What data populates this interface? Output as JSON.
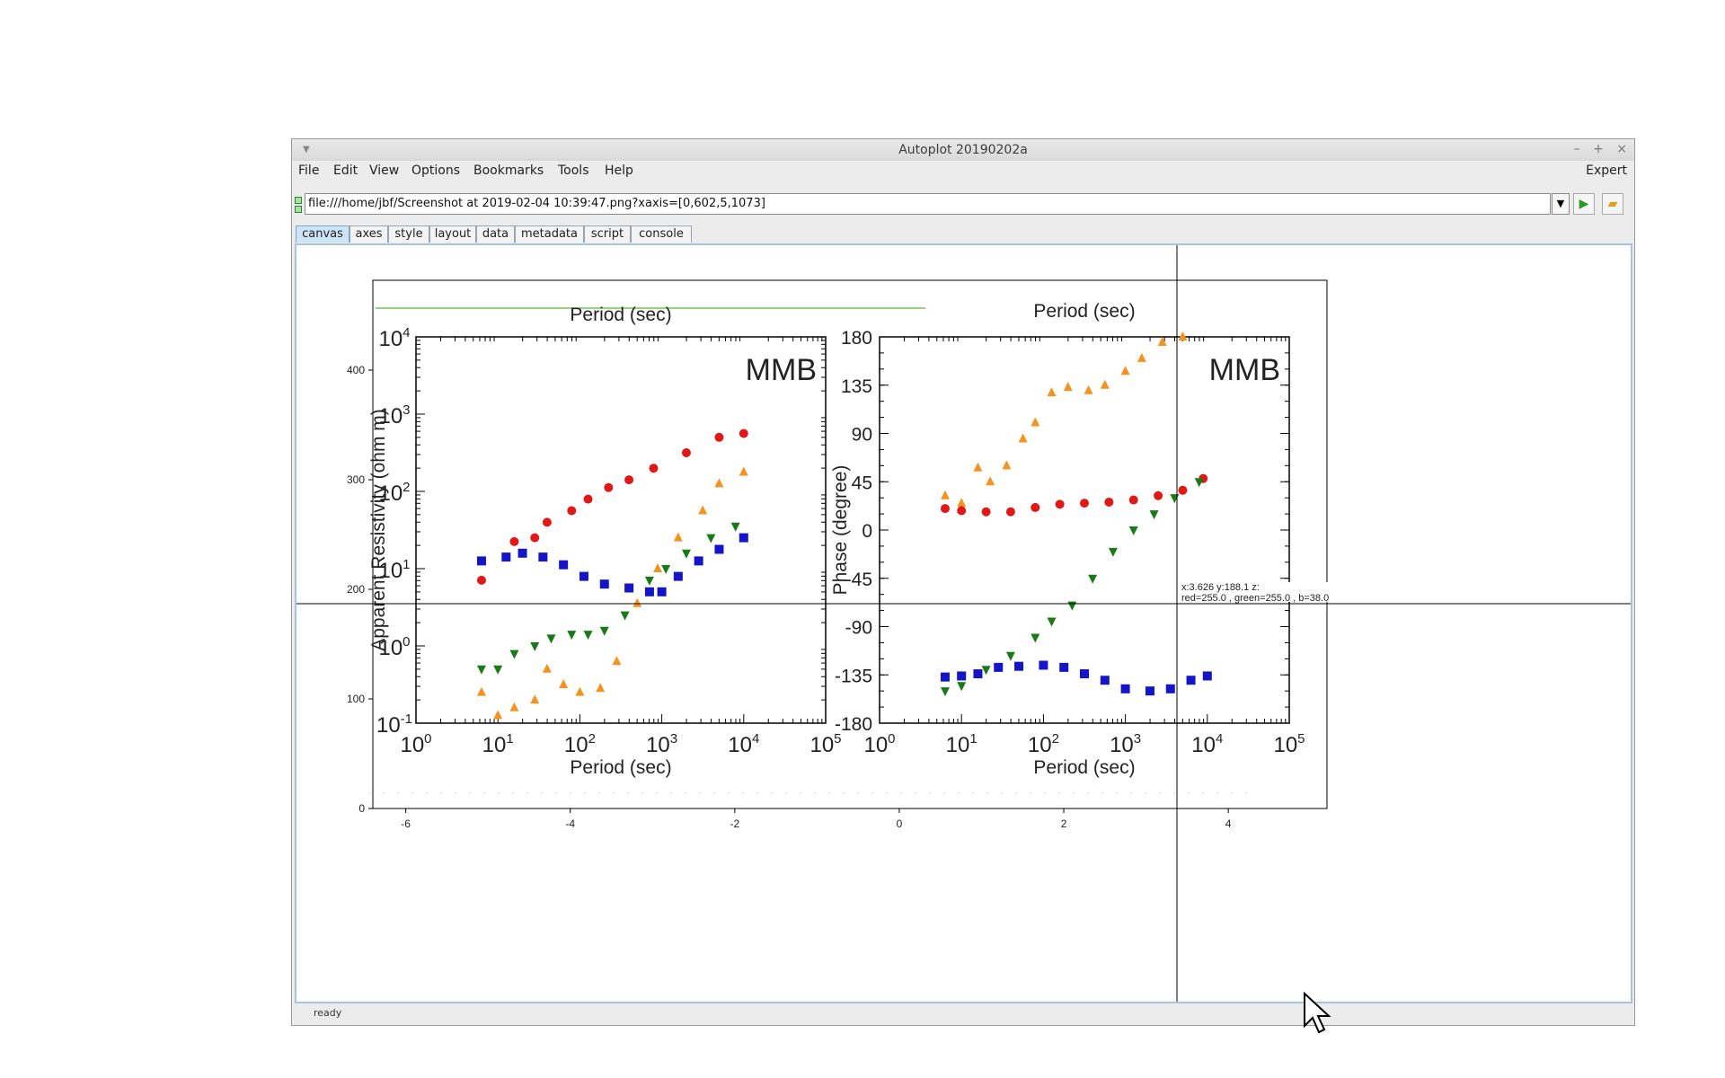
{
  "window": {
    "title": "Autoplot 20190202a"
  },
  "menu": {
    "items": [
      "File",
      "Edit",
      "View",
      "Options",
      "Bookmarks",
      "Tools",
      "Help"
    ],
    "expert": "Expert"
  },
  "url": {
    "value": "file:///home/jbf/Screenshot at 2019-02-04 10:39:47.png?xaxis=[0,602,5,1073]"
  },
  "tabs": [
    "canvas",
    "axes",
    "style",
    "layout",
    "data",
    "metadata",
    "script",
    "console"
  ],
  "status": "ready",
  "readout": {
    "coords": "x:3.626  y:188.1  z:",
    "rgb": "red=255.0 , green=255.0 , b=38.0"
  },
  "chart_data": [
    {
      "type": "scatter",
      "title": "",
      "xlabel": "",
      "ylabel": "",
      "x_ticks": [
        -6,
        -4,
        -2,
        0,
        2,
        4
      ],
      "y_ticks": [
        0,
        100,
        200,
        300,
        400
      ],
      "xlim": [
        -6.4,
        5.2
      ],
      "ylim": [
        0,
        482
      ]
    },
    {
      "type": "scatter",
      "title": "MMB",
      "top_label": "Period (sec)",
      "xlabel": "Period (sec)",
      "ylabel": "Apparent Resistivity (ohm m)",
      "x_scale": "log",
      "y_scale": "log",
      "x_ticks": [
        "10^0",
        "10^1",
        "10^2",
        "10^3",
        "10^4",
        "10^5"
      ],
      "y_ticks": [
        "10^-1",
        "10^0",
        "10^1",
        "10^2",
        "10^3",
        "10^4"
      ],
      "series": [
        {
          "color": "#e01818",
          "marker": "circle",
          "points": [
            [
              0.8,
              0.85
            ],
            [
              1.2,
              1.35
            ],
            [
              1.45,
              1.4
            ],
            [
              1.6,
              1.6
            ],
            [
              1.9,
              1.75
            ],
            [
              2.1,
              1.9
            ],
            [
              2.35,
              2.05
            ],
            [
              2.6,
              2.15
            ],
            [
              2.9,
              2.3
            ],
            [
              3.3,
              2.5
            ],
            [
              3.7,
              2.7
            ],
            [
              4.0,
              2.75
            ]
          ]
        },
        {
          "color": "#f59321",
          "marker": "triangle",
          "points": [
            [
              0.8,
              -0.6
            ],
            [
              1.0,
              -0.9
            ],
            [
              1.2,
              -0.8
            ],
            [
              1.45,
              -0.7
            ],
            [
              1.6,
              -0.3
            ],
            [
              1.8,
              -0.5
            ],
            [
              2.0,
              -0.6
            ],
            [
              2.25,
              -0.55
            ],
            [
              2.45,
              -0.2
            ],
            [
              2.7,
              0.55
            ],
            [
              2.95,
              1.0
            ],
            [
              3.2,
              1.4
            ],
            [
              3.5,
              1.75
            ],
            [
              3.7,
              2.1
            ],
            [
              4.0,
              2.25
            ]
          ]
        },
        {
          "color": "#1a7a1a",
          "marker": "triangle-down",
          "points": [
            [
              0.8,
              -0.3
            ],
            [
              1.0,
              -0.3
            ],
            [
              1.2,
              -0.1
            ],
            [
              1.45,
              0.0
            ],
            [
              1.65,
              0.1
            ],
            [
              1.9,
              0.15
            ],
            [
              2.1,
              0.15
            ],
            [
              2.3,
              0.2
            ],
            [
              2.55,
              0.4
            ],
            [
              2.85,
              0.85
            ],
            [
              3.05,
              1.0
            ],
            [
              3.3,
              1.2
            ],
            [
              3.6,
              1.4
            ],
            [
              3.9,
              1.55
            ]
          ]
        },
        {
          "color": "#1414c8",
          "marker": "square",
          "points": [
            [
              0.8,
              1.1
            ],
            [
              1.1,
              1.15
            ],
            [
              1.3,
              1.2
            ],
            [
              1.55,
              1.15
            ],
            [
              1.8,
              1.05
            ],
            [
              2.05,
              0.9
            ],
            [
              2.3,
              0.8
            ],
            [
              2.6,
              0.75
            ],
            [
              2.85,
              0.7
            ],
            [
              3.0,
              0.7
            ],
            [
              3.2,
              0.9
            ],
            [
              3.45,
              1.1
            ],
            [
              3.7,
              1.25
            ],
            [
              4.0,
              1.4
            ]
          ]
        }
      ]
    },
    {
      "type": "scatter",
      "title": "MMB",
      "top_label": "Period (sec)",
      "xlabel": "Period (sec)",
      "ylabel": "Phase (degree)",
      "x_scale": "log",
      "x_ticks": [
        "10^0",
        "10^1",
        "10^2",
        "10^3",
        "10^4",
        "10^5"
      ],
      "y_ticks": [
        180,
        135,
        90,
        45,
        0,
        -45,
        -90,
        -135,
        -180
      ],
      "ylim": [
        -180,
        180
      ],
      "series": [
        {
          "color": "#f59321",
          "marker": "triangle",
          "points": [
            [
              0.8,
              32
            ],
            [
              1.0,
              25
            ],
            [
              1.2,
              58
            ],
            [
              1.35,
              45
            ],
            [
              1.55,
              60
            ],
            [
              1.75,
              85
            ],
            [
              1.9,
              100
            ],
            [
              2.1,
              128
            ],
            [
              2.3,
              133
            ],
            [
              2.55,
              130
            ],
            [
              2.75,
              135
            ],
            [
              3.0,
              148
            ],
            [
              3.2,
              160
            ],
            [
              3.45,
              175
            ],
            [
              3.7,
              180
            ]
          ]
        },
        {
          "color": "#e01818",
          "marker": "circle",
          "points": [
            [
              0.8,
              20
            ],
            [
              1.0,
              18
            ],
            [
              1.3,
              17
            ],
            [
              1.6,
              17
            ],
            [
              1.9,
              21
            ],
            [
              2.2,
              24
            ],
            [
              2.5,
              25
            ],
            [
              2.8,
              26
            ],
            [
              3.1,
              28
            ],
            [
              3.4,
              32
            ],
            [
              3.7,
              37
            ],
            [
              3.95,
              48
            ]
          ]
        },
        {
          "color": "#1a7a1a",
          "marker": "triangle-down",
          "points": [
            [
              0.8,
              -150
            ],
            [
              1.0,
              -145
            ],
            [
              1.3,
              -130
            ],
            [
              1.6,
              -117
            ],
            [
              1.9,
              -100
            ],
            [
              2.1,
              -85
            ],
            [
              2.35,
              -70
            ],
            [
              2.6,
              -45
            ],
            [
              2.85,
              -20
            ],
            [
              3.1,
              0
            ],
            [
              3.35,
              15
            ],
            [
              3.6,
              30
            ],
            [
              3.9,
              45
            ]
          ]
        },
        {
          "color": "#1414c8",
          "marker": "square",
          "points": [
            [
              0.8,
              -137
            ],
            [
              1.0,
              -136
            ],
            [
              1.2,
              -134
            ],
            [
              1.45,
              -128
            ],
            [
              1.7,
              -127
            ],
            [
              2.0,
              -126
            ],
            [
              2.25,
              -128
            ],
            [
              2.5,
              -134
            ],
            [
              2.75,
              -140
            ],
            [
              3.0,
              -148
            ],
            [
              3.3,
              -150
            ],
            [
              3.55,
              -148
            ],
            [
              3.8,
              -140
            ],
            [
              4.0,
              -136
            ]
          ]
        }
      ]
    }
  ]
}
